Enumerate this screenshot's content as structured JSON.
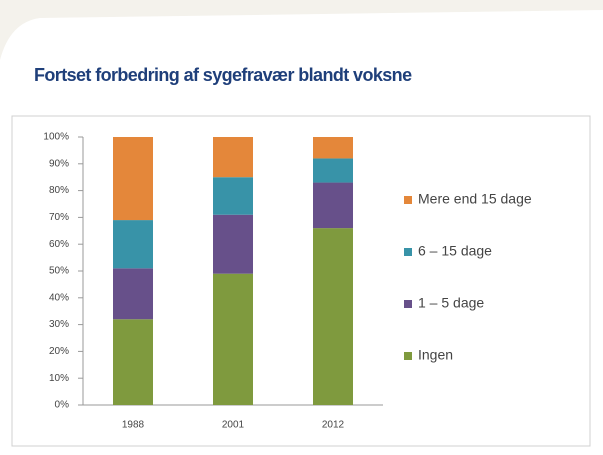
{
  "chart_data": {
    "type": "stacked_bar",
    "title": "Fortset forbedring af sygefravær blandt voksne",
    "categories": [
      "1988",
      "2001",
      "2012"
    ],
    "series": [
      {
        "name": "Ingen",
        "color": "#7f9a3e",
        "values": [
          32,
          49,
          66
        ]
      },
      {
        "name": "1 – 5 dage",
        "color": "#67508a",
        "values": [
          19,
          22,
          17
        ]
      },
      {
        "name": "6 – 15 dage",
        "color": "#3893a8",
        "values": [
          18,
          14,
          9
        ]
      },
      {
        "name": "Mere end 15 dage",
        "color": "#e4873a",
        "values": [
          31,
          15,
          8
        ]
      }
    ],
    "ylim": [
      0,
      100
    ],
    "yticks": [
      {
        "value": 0,
        "label": "0%"
      },
      {
        "value": 10,
        "label": "10%"
      },
      {
        "value": 20,
        "label": "20%"
      },
      {
        "value": 30,
        "label": "30%"
      },
      {
        "value": 40,
        "label": "40%"
      },
      {
        "value": 50,
        "label": "50%"
      },
      {
        "value": 60,
        "label": "60%"
      },
      {
        "value": 70,
        "label": "70%"
      },
      {
        "value": 80,
        "label": "80%"
      },
      {
        "value": 90,
        "label": "90%"
      },
      {
        "value": 100,
        "label": "100%"
      }
    ],
    "grid": false,
    "legend": "right"
  }
}
